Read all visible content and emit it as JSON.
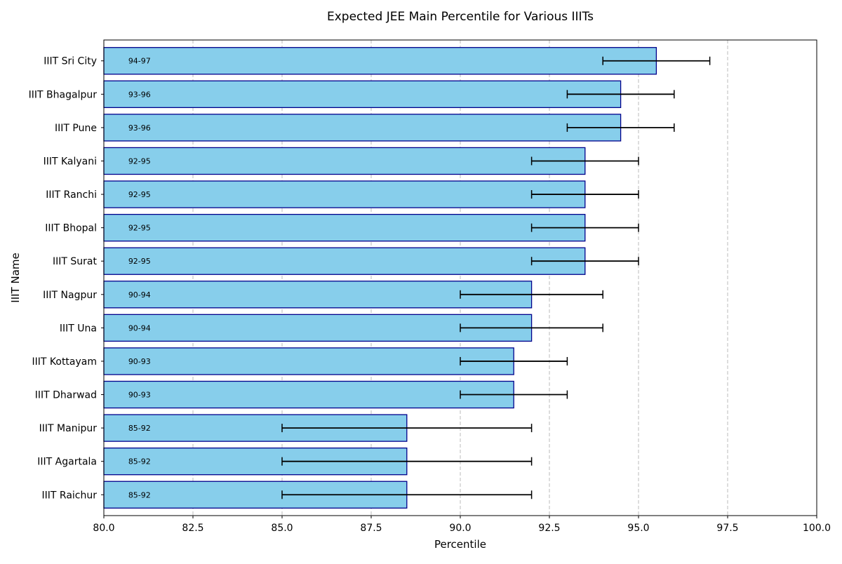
{
  "chart_data": {
    "type": "bar",
    "orientation": "horizontal",
    "title": "Expected JEE Main Percentile for Various IIITs",
    "xlabel": "Percentile",
    "ylabel": "IIIT Name",
    "xlim": [
      80,
      100
    ],
    "xticks": [
      "80.0",
      "82.5",
      "85.0",
      "87.5",
      "90.0",
      "92.5",
      "95.0",
      "97.5",
      "100.0"
    ],
    "grid": "x-dashed",
    "bar_color": "#87CEEB",
    "edge_color": "#00008B",
    "categories": [
      "IIIT Sri City",
      "IIIT Bhagalpur",
      "IIIT Pune",
      "IIIT Kalyani",
      "IIIT Ranchi",
      "IIIT Bhopal",
      "IIIT Surat",
      "IIIT Nagpur",
      "IIIT Una",
      "IIIT Kottayam",
      "IIIT Dharwad",
      "IIIT Manipur",
      "IIIT Agartala",
      "IIIT Raichur"
    ],
    "values": [
      95.5,
      94.5,
      94.5,
      93.5,
      93.5,
      93.5,
      93.5,
      92,
      92,
      91.5,
      91.5,
      88.5,
      88.5,
      88.5
    ],
    "error_low": [
      94,
      93,
      93,
      92,
      92,
      92,
      92,
      90,
      90,
      90,
      90,
      85,
      85,
      85
    ],
    "error_high": [
      97,
      96,
      96,
      95,
      95,
      95,
      95,
      94,
      94,
      93,
      93,
      92,
      92,
      92
    ],
    "bar_labels": [
      "94-97",
      "93-96",
      "93-96",
      "92-95",
      "92-95",
      "92-95",
      "92-95",
      "90-94",
      "90-94",
      "90-93",
      "90-93",
      "85-92",
      "85-92",
      "85-92"
    ]
  }
}
